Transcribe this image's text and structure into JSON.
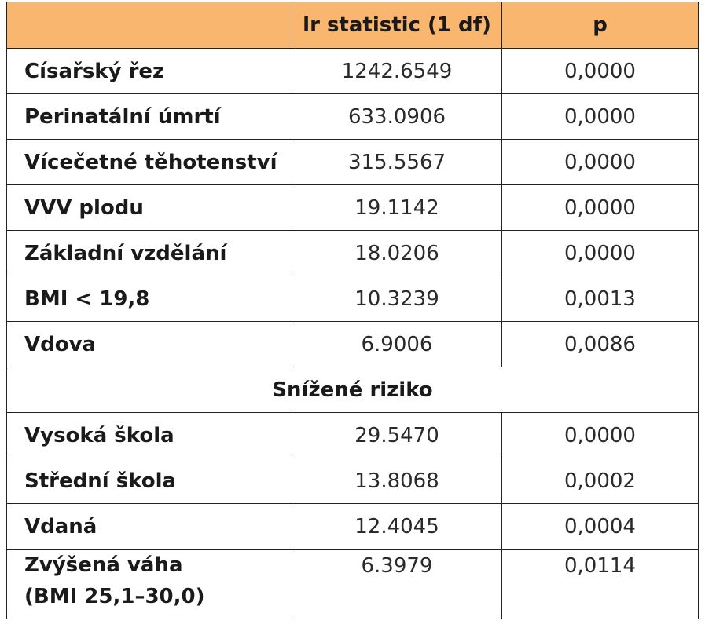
{
  "table": {
    "headers": [
      "",
      "lr statistic (1 df)",
      "p"
    ],
    "rows_increased": [
      {
        "label": "Císařský řez",
        "lr": "1242.6549",
        "p": "0,0000"
      },
      {
        "label": "Perinatální úmrtí",
        "lr": "633.0906",
        "p": "0,0000"
      },
      {
        "label": "Vícečetné těhotenství",
        "lr": "315.5567",
        "p": "0,0000"
      },
      {
        "label": "VVV plodu",
        "lr": "19.1142",
        "p": "0,0000"
      },
      {
        "label": "Základní vzdělání",
        "lr": "18.0206",
        "p": "0,0000"
      },
      {
        "label": "BMI < 19,8",
        "lr": "10.3239",
        "p": "0,0013"
      },
      {
        "label": "Vdova",
        "lr": "6.9006",
        "p": "0,0086"
      }
    ],
    "section_label": "Snížené riziko",
    "rows_decreased": [
      {
        "label": "Vysoká škola",
        "lr": "29.5470",
        "p": "0,0000"
      },
      {
        "label": "Střední škola",
        "lr": "13.8068",
        "p": "0,0002"
      },
      {
        "label": "Vdaná",
        "lr": "12.4045",
        "p": "0,0004"
      }
    ],
    "last_row": {
      "label_line1": "Zvýšená váha",
      "label_line2": "(BMI  25,1–30,0)",
      "lr": "6.3979",
      "p": "0,0114"
    }
  }
}
